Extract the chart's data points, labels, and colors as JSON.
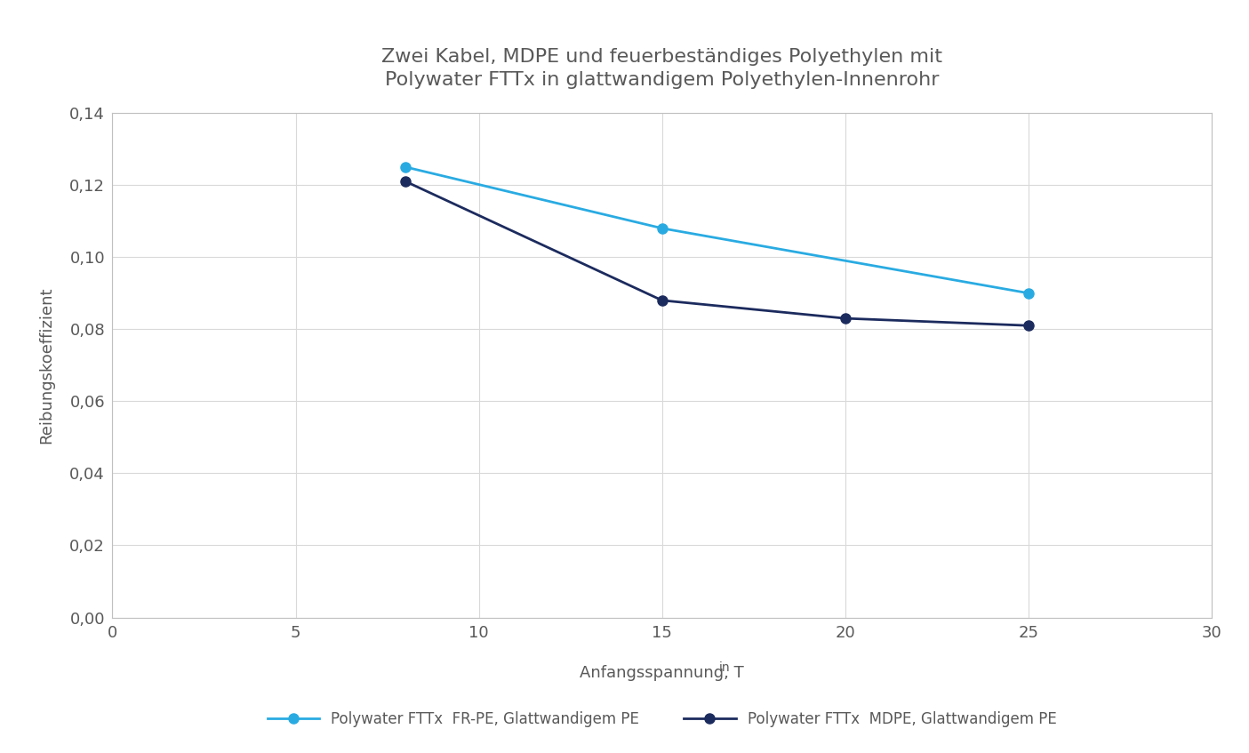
{
  "title": "Zwei Kabel, MDPE und feuerbeständiges Polyethylen mit\nPolywater FTTx in glattwandigem Polyethylen-Innenrohr",
  "ylabel": "Reibungskoeffizient",
  "xlim": [
    0,
    30
  ],
  "ylim": [
    0,
    0.14
  ],
  "xticks": [
    0,
    5,
    10,
    15,
    20,
    25,
    30
  ],
  "yticks": [
    0.0,
    0.02,
    0.04,
    0.06,
    0.08,
    0.1,
    0.12,
    0.14
  ],
  "series": [
    {
      "label": "Polywater FTTx  FR-PE, Glattwandigem PE",
      "x": [
        8,
        15,
        25
      ],
      "y": [
        0.125,
        0.108,
        0.09
      ],
      "color": "#29ABE2",
      "marker": "o",
      "linewidth": 2.0,
      "markersize": 8
    },
    {
      "label": "Polywater FTTx  MDPE, Glattwandigem PE",
      "x": [
        8,
        15,
        20,
        25
      ],
      "y": [
        0.121,
        0.088,
        0.083,
        0.081
      ],
      "color": "#1C2B5E",
      "marker": "o",
      "linewidth": 2.0,
      "markersize": 8
    }
  ],
  "title_color": "#595959",
  "axis_color": "#595959",
  "tick_color": "#595959",
  "grid_color": "#D9D9D9",
  "spine_color": "#C0C0C0",
  "background_color": "#FFFFFF"
}
